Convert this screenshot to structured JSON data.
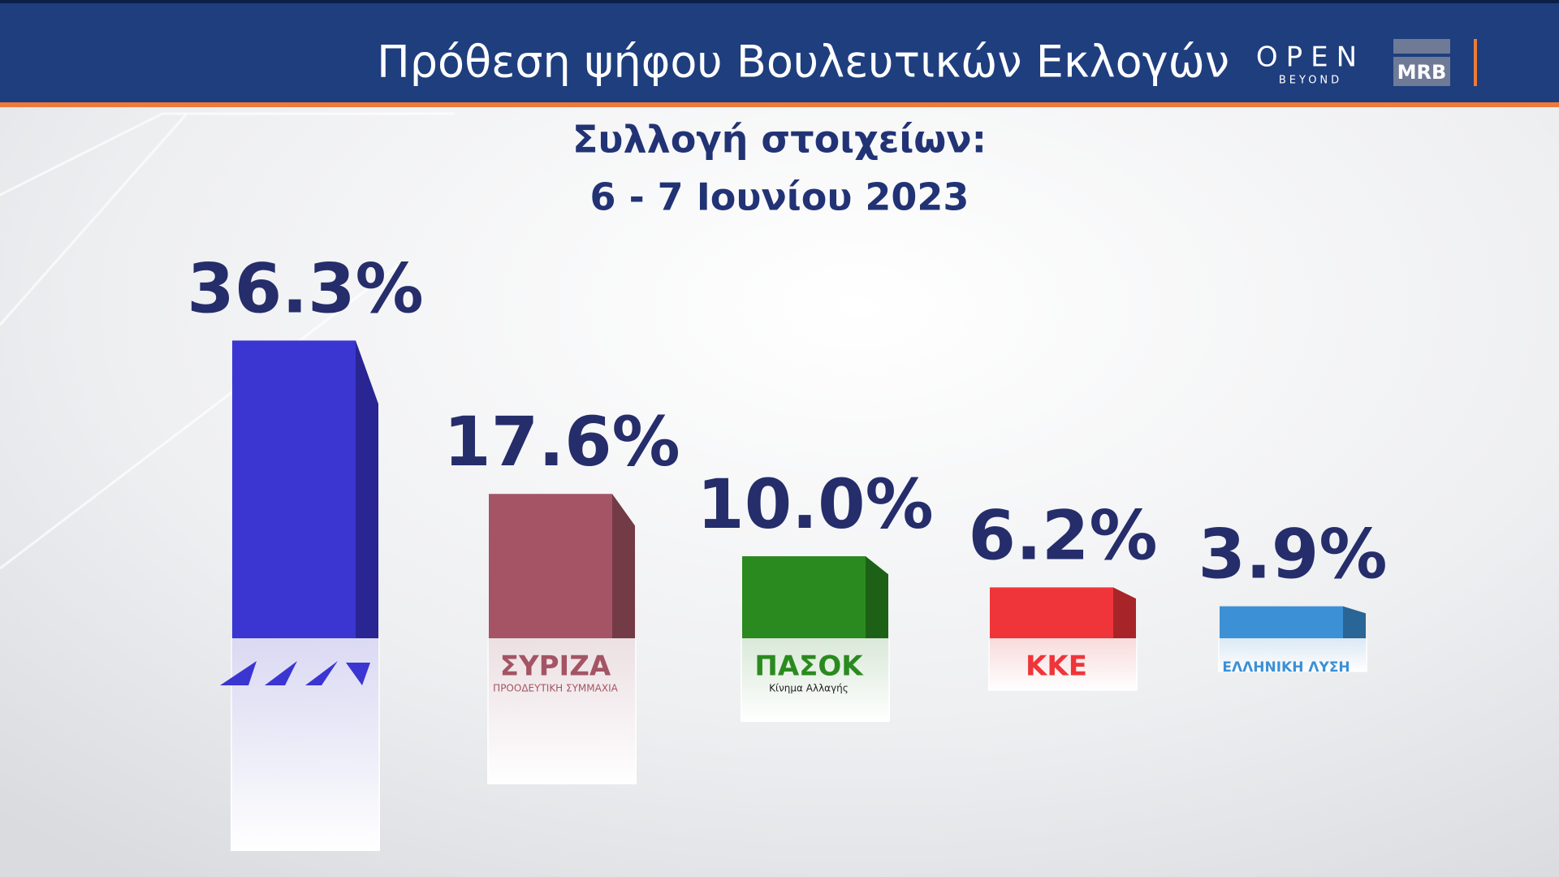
{
  "header": {
    "title": "Πρόθεση ψήφου Βουλευτικών Εκλογών",
    "channel_logo": "OPEN",
    "channel_logo_sub": "BEYOND",
    "pollster_logo": "MRB"
  },
  "chart_data": {
    "type": "bar",
    "subtitle": [
      "Συλλογή στοιχείων:",
      "6 - 7 Ιουνίου 2023"
    ],
    "categories": [
      null,
      "ΣΥΡΙΖΑ",
      "ΠΑΣΟΚ",
      "ΚΚΕ",
      "ΕΛΛΗΝΙΚΗ ΛΥΣΗ"
    ],
    "category_sublabels": [
      null,
      "ΠΡΟΟΔΕΥΤΙΚΗ ΣΥΜΜΑΧΙΑ",
      "Κίνημα Αλλαγής",
      null,
      null
    ],
    "values": [
      36.3,
      17.6,
      10.0,
      6.2,
      3.9
    ],
    "value_labels": [
      "36.3%",
      "17.6%",
      "10.0%",
      "6.2%",
      "3.9%"
    ],
    "colors": [
      "#3b35d2",
      "#a45464",
      "#2a8a1f",
      "#ef3539",
      "#3b90d6"
    ]
  }
}
